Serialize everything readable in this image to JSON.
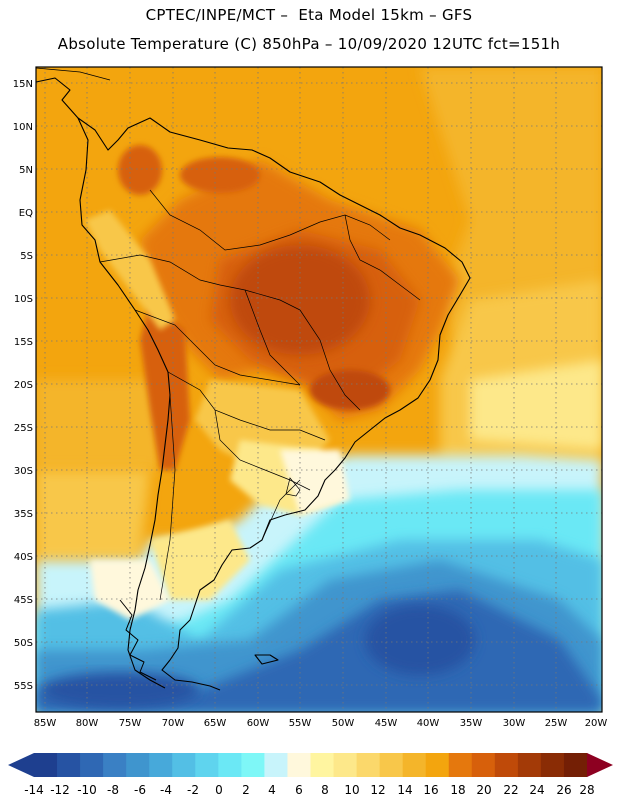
{
  "header": {
    "line1": "CPTEC/INPE/MCT –  Eta Model 15km – GFS",
    "line2": "Absolute Temperature (C) 850hPa – 10/09/2020 12UTC fct=151h"
  },
  "map": {
    "lat_labels": [
      "15N",
      "10N",
      "5N",
      "EQ",
      "5S",
      "10S",
      "15S",
      "20S",
      "25S",
      "30S",
      "35S",
      "40S",
      "45S",
      "50S",
      "55S"
    ],
    "lon_labels": [
      "85W",
      "80W",
      "75W",
      "70W",
      "65W",
      "60W",
      "55W",
      "50W",
      "45W",
      "40W",
      "35W",
      "30W",
      "25W",
      "20W"
    ],
    "gridlines": "dotted"
  },
  "colorbar": {
    "labels": [
      "-14",
      "-12",
      "-10",
      "-8",
      "-6",
      "-4",
      "-2",
      "0",
      "2",
      "4",
      "6",
      "8",
      "10",
      "12",
      "14",
      "16",
      "18",
      "20",
      "22",
      "24",
      "26",
      "28"
    ],
    "colors": [
      "#1e3f8f",
      "#2653a3",
      "#2f68b4",
      "#3a80c4",
      "#3f95ce",
      "#47a9da",
      "#53bfe5",
      "#5fd4ee",
      "#6be8f5",
      "#7ef7f7",
      "#c8f4fb",
      "#fff8dc",
      "#fff5a0",
      "#fde88a",
      "#fbd86b",
      "#f8c74a",
      "#f4b52a",
      "#f3a50e",
      "#e5780d",
      "#d7600b",
      "#bf4a09",
      "#a33a07",
      "#8a2c05",
      "#741f05",
      "#8d0021"
    ],
    "left_arrow_color": "#1e3f8f",
    "right_arrow_color": "#8d0021"
  }
}
